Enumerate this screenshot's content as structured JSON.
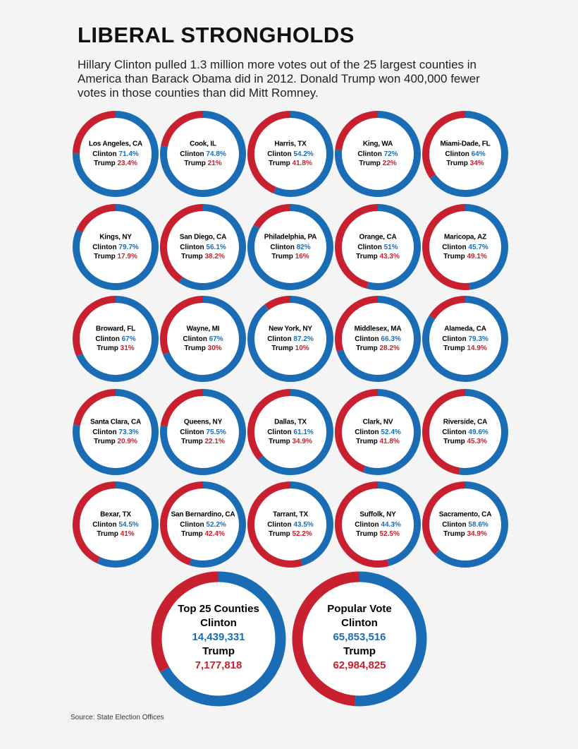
{
  "title": "LIBERAL STRONGHOLDS",
  "subtitle": "Hillary Clinton pulled 1.3 million more votes out of the 25 largest counties in America than Barack Obama did in 2012. Donald Trump won 400,000 fewer votes in those counties than did Mitt Romney.",
  "source": "Source: State Election Offices",
  "chart_data": [
    {
      "type": "donut",
      "title": "Los Angeles, CA",
      "categories": [
        "Clinton",
        "Trump"
      ],
      "values": [
        71.4,
        23.4
      ],
      "value_labels": [
        "71.4%",
        "23.4%"
      ],
      "colors": [
        "#1a6db4",
        "#c8202f"
      ]
    },
    {
      "type": "donut",
      "title": "Cook, IL",
      "categories": [
        "Clinton",
        "Trump"
      ],
      "values": [
        74.8,
        21
      ],
      "value_labels": [
        "74.8%",
        "21%"
      ],
      "colors": [
        "#1a6db4",
        "#c8202f"
      ]
    },
    {
      "type": "donut",
      "title": "Harris, TX",
      "categories": [
        "Clinton",
        "Trump"
      ],
      "values": [
        54.2,
        41.8
      ],
      "value_labels": [
        "54.2%",
        "41.8%"
      ],
      "colors": [
        "#1a6db4",
        "#c8202f"
      ]
    },
    {
      "type": "donut",
      "title": "King, WA",
      "categories": [
        "Clinton",
        "Trump"
      ],
      "values": [
        72,
        22
      ],
      "value_labels": [
        "72%",
        "22%"
      ],
      "colors": [
        "#1a6db4",
        "#c8202f"
      ]
    },
    {
      "type": "donut",
      "title": "Miami-Dade, FL",
      "categories": [
        "Clinton",
        "Trump"
      ],
      "values": [
        64,
        34
      ],
      "value_labels": [
        "64%",
        "34%"
      ],
      "colors": [
        "#1a6db4",
        "#c8202f"
      ]
    },
    {
      "type": "donut",
      "title": "Kings, NY",
      "categories": [
        "Clinton",
        "Trump"
      ],
      "values": [
        79.7,
        17.9
      ],
      "value_labels": [
        "79.7%",
        "17.9%"
      ],
      "colors": [
        "#1a6db4",
        "#c8202f"
      ]
    },
    {
      "type": "donut",
      "title": "San Diego, CA",
      "categories": [
        "Clinton",
        "Trump"
      ],
      "values": [
        56.1,
        38.2
      ],
      "value_labels": [
        "56.1%",
        "38.2%"
      ],
      "colors": [
        "#1a6db4",
        "#c8202f"
      ]
    },
    {
      "type": "donut",
      "title": "Philadelphia, PA",
      "categories": [
        "Clinton",
        "Trump"
      ],
      "values": [
        82,
        16
      ],
      "value_labels": [
        "82%",
        "16%"
      ],
      "colors": [
        "#1a6db4",
        "#c8202f"
      ]
    },
    {
      "type": "donut",
      "title": "Orange, CA",
      "categories": [
        "Clinton",
        "Trump"
      ],
      "values": [
        51,
        43.3
      ],
      "value_labels": [
        "51%",
        "43.3%"
      ],
      "colors": [
        "#1a6db4",
        "#c8202f"
      ]
    },
    {
      "type": "donut",
      "title": "Maricopa, AZ",
      "categories": [
        "Clinton",
        "Trump"
      ],
      "values": [
        45.7,
        49.1
      ],
      "value_labels": [
        "45.7%",
        "49.1%"
      ],
      "colors": [
        "#1a6db4",
        "#c8202f"
      ]
    },
    {
      "type": "donut",
      "title": "Broward, FL",
      "categories": [
        "Clinton",
        "Trump"
      ],
      "values": [
        67,
        31
      ],
      "value_labels": [
        "67%",
        "31%"
      ],
      "colors": [
        "#1a6db4",
        "#c8202f"
      ]
    },
    {
      "type": "donut",
      "title": "Wayne, MI",
      "categories": [
        "Clinton",
        "Trump"
      ],
      "values": [
        67,
        30
      ],
      "value_labels": [
        "67%",
        "30%"
      ],
      "colors": [
        "#1a6db4",
        "#c8202f"
      ]
    },
    {
      "type": "donut",
      "title": "New York, NY",
      "categories": [
        "Clinton",
        "Trump"
      ],
      "values": [
        87.2,
        10
      ],
      "value_labels": [
        "87.2%",
        "10%"
      ],
      "colors": [
        "#1a6db4",
        "#c8202f"
      ]
    },
    {
      "type": "donut",
      "title": "Middlesex, MA",
      "categories": [
        "Clinton",
        "Trump"
      ],
      "values": [
        66.3,
        28.2
      ],
      "value_labels": [
        "66.3%",
        "28.2%"
      ],
      "colors": [
        "#1a6db4",
        "#c8202f"
      ]
    },
    {
      "type": "donut",
      "title": "Alameda, CA",
      "categories": [
        "Clinton",
        "Trump"
      ],
      "values": [
        79.3,
        14.9
      ],
      "value_labels": [
        "79.3%",
        "14.9%"
      ],
      "colors": [
        "#1a6db4",
        "#c8202f"
      ]
    },
    {
      "type": "donut",
      "title": "Santa Clara, CA",
      "categories": [
        "Clinton",
        "Trump"
      ],
      "values": [
        73.3,
        20.9
      ],
      "value_labels": [
        "73.3%",
        "20.9%"
      ],
      "colors": [
        "#1a6db4",
        "#c8202f"
      ]
    },
    {
      "type": "donut",
      "title": "Queens, NY",
      "categories": [
        "Clinton",
        "Trump"
      ],
      "values": [
        75.5,
        22.1
      ],
      "value_labels": [
        "75.5%",
        "22.1%"
      ],
      "colors": [
        "#1a6db4",
        "#c8202f"
      ]
    },
    {
      "type": "donut",
      "title": "Dallas, TX",
      "categories": [
        "Clinton",
        "Trump"
      ],
      "values": [
        61.1,
        34.9
      ],
      "value_labels": [
        "61.1%",
        "34.9%"
      ],
      "colors": [
        "#1a6db4",
        "#c8202f"
      ]
    },
    {
      "type": "donut",
      "title": "Clark, NV",
      "categories": [
        "Clinton",
        "Trump"
      ],
      "values": [
        52.4,
        41.8
      ],
      "value_labels": [
        "52.4%",
        "41.8%"
      ],
      "colors": [
        "#1a6db4",
        "#c8202f"
      ]
    },
    {
      "type": "donut",
      "title": "Riverside, CA",
      "categories": [
        "Clinton",
        "Trump"
      ],
      "values": [
        49.6,
        45.3
      ],
      "value_labels": [
        "49.6%",
        "45.3%"
      ],
      "colors": [
        "#1a6db4",
        "#c8202f"
      ]
    },
    {
      "type": "donut",
      "title": "Bexar, TX",
      "categories": [
        "Clinton",
        "Trump"
      ],
      "values": [
        54.5,
        41
      ],
      "value_labels": [
        "54.5%",
        "41%"
      ],
      "colors": [
        "#1a6db4",
        "#c8202f"
      ]
    },
    {
      "type": "donut",
      "title": "San Bernardino, CA",
      "categories": [
        "Clinton",
        "Trump"
      ],
      "values": [
        52.2,
        42.4
      ],
      "value_labels": [
        "52.2%",
        "42.4%"
      ],
      "colors": [
        "#1a6db4",
        "#c8202f"
      ]
    },
    {
      "type": "donut",
      "title": "Tarrant, TX",
      "categories": [
        "Clinton",
        "Trump"
      ],
      "values": [
        43.5,
        52.2
      ],
      "value_labels": [
        "43.5%",
        "52.2%"
      ],
      "colors": [
        "#1a6db4",
        "#c8202f"
      ]
    },
    {
      "type": "donut",
      "title": "Suffolk, NY",
      "categories": [
        "Clinton",
        "Trump"
      ],
      "values": [
        44.3,
        52.5
      ],
      "value_labels": [
        "44.3%",
        "52.5%"
      ],
      "colors": [
        "#1a6db4",
        "#c8202f"
      ]
    },
    {
      "type": "donut",
      "title": "Sacramento, CA",
      "categories": [
        "Clinton",
        "Trump"
      ],
      "values": [
        58.6,
        34.9
      ],
      "value_labels": [
        "58.6%",
        "34.9%"
      ],
      "colors": [
        "#1a6db4",
        "#c8202f"
      ]
    },
    {
      "type": "donut",
      "title": "Top 25 Counties",
      "categories": [
        "Clinton",
        "Trump"
      ],
      "values": [
        14439331,
        7177818
      ],
      "value_labels": [
        "14,439,331",
        "7,177,818"
      ],
      "colors": [
        "#1a6db4",
        "#c8202f"
      ]
    },
    {
      "type": "donut",
      "title": "Popular Vote",
      "categories": [
        "Clinton",
        "Trump"
      ],
      "values": [
        65853516,
        62984825
      ],
      "value_labels": [
        "65,853,516",
        "62,984,825"
      ],
      "colors": [
        "#1a6db4",
        "#c8202f"
      ]
    }
  ]
}
